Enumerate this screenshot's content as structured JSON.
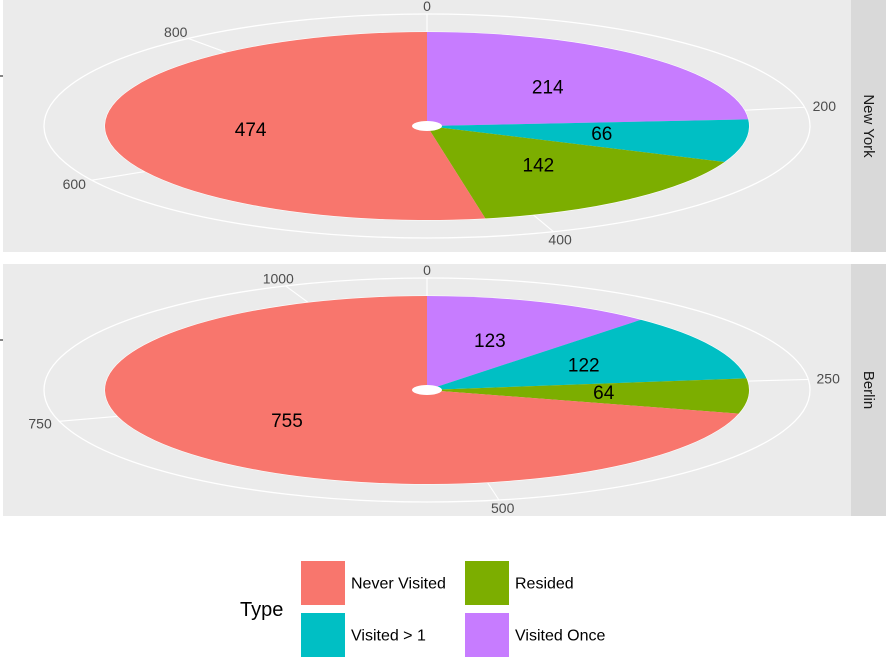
{
  "chart_data": {
    "type": "pie",
    "facet_layout": "rows",
    "legend": {
      "title": "Type",
      "position": "bottom"
    },
    "colors": {
      "Never Visited": "#F8766D",
      "Resided": "#7CAE00",
      "Visited > 1": "#00BFC4",
      "Visited Once": "#C77CFF"
    },
    "legend_items": [
      "Never Visited",
      "Resided",
      "Visited > 1",
      "Visited Once"
    ],
    "panels": [
      {
        "facet": "New York",
        "slices": [
          {
            "category": "Visited Once",
            "value": 214
          },
          {
            "category": "Visited > 1",
            "value": 66
          },
          {
            "category": "Resided",
            "value": 142
          },
          {
            "category": "Never Visited",
            "value": 474
          }
        ],
        "tick_labels": [
          "0",
          "200",
          "400",
          "600",
          "800"
        ],
        "tick_values": [
          0,
          200,
          400,
          600,
          800
        ]
      },
      {
        "facet": "Berlin",
        "slices": [
          {
            "category": "Visited Once",
            "value": 123
          },
          {
            "category": "Visited > 1",
            "value": 122
          },
          {
            "category": "Resided",
            "value": 64
          },
          {
            "category": "Never Visited",
            "value": 755
          }
        ],
        "tick_labels": [
          "0",
          "250",
          "500",
          "750",
          "1000"
        ],
        "tick_values": [
          0,
          250,
          500,
          750,
          1000
        ]
      }
    ]
  }
}
